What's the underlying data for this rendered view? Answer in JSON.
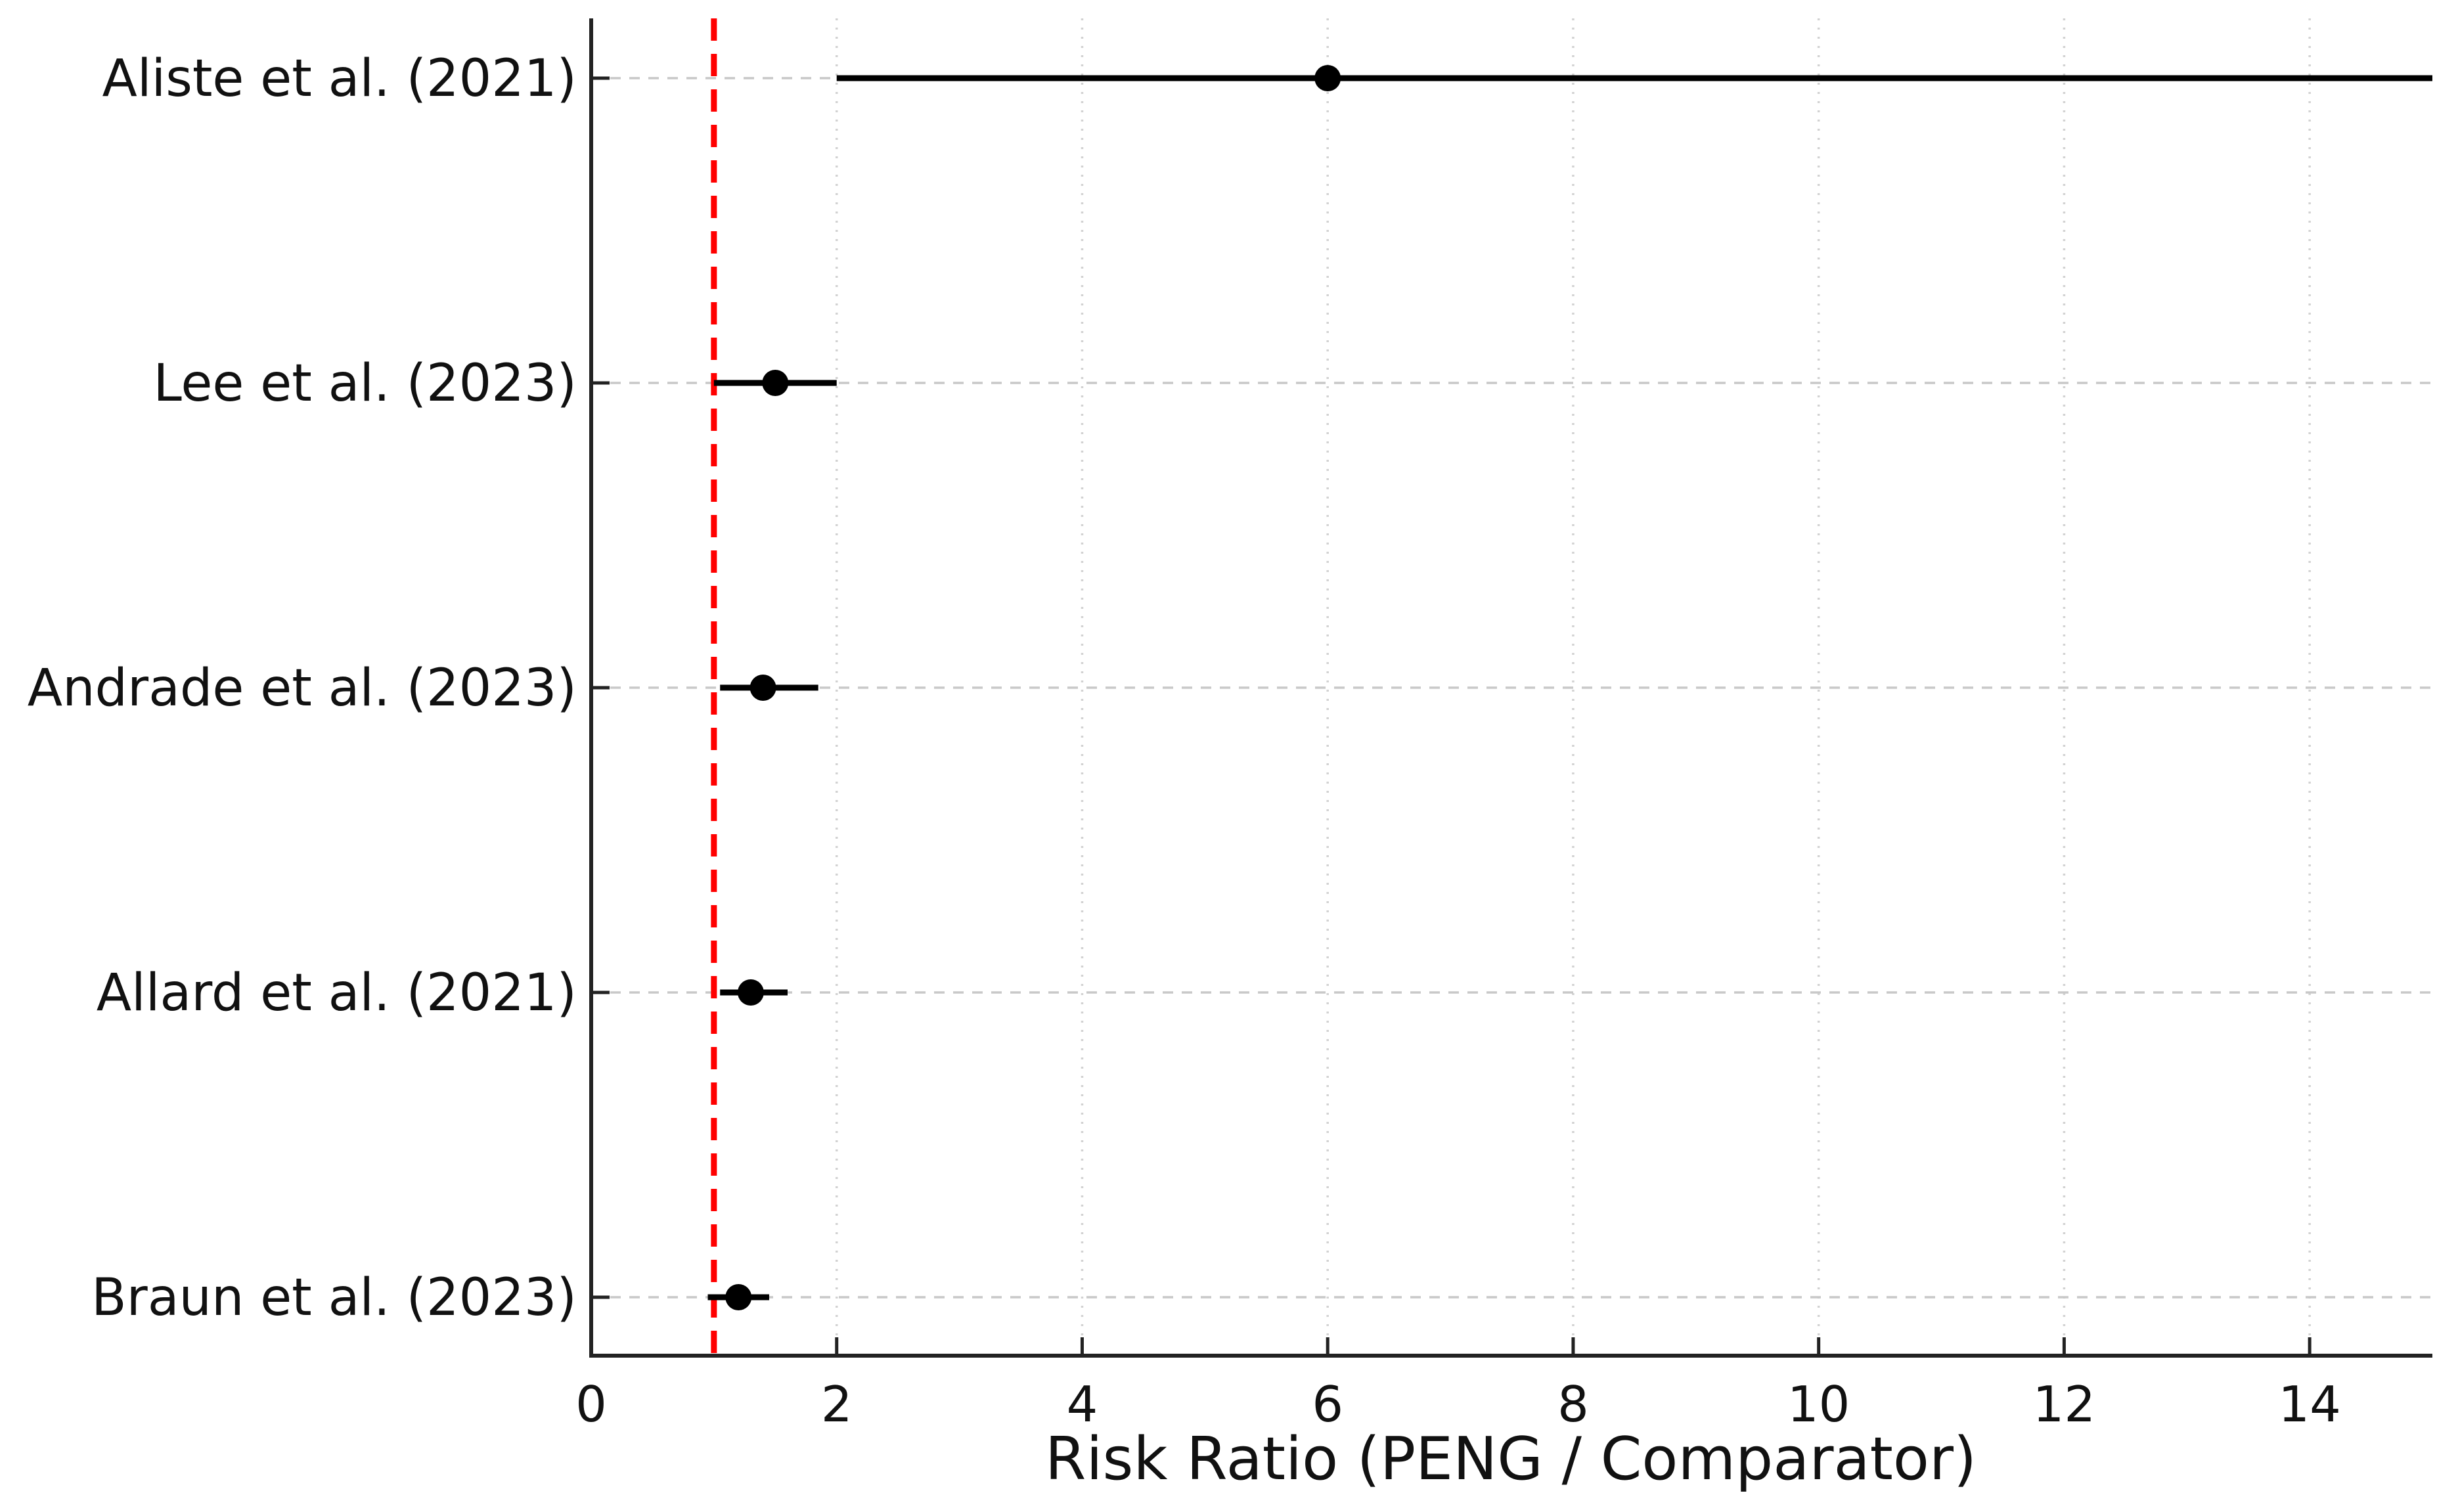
{
  "chart_data": {
    "type": "scatter",
    "subtype": "forest-plot",
    "title": "",
    "xlabel": "Risk Ratio (PENG / Comparator)",
    "ylabel": "",
    "xlim": [
      0,
      15
    ],
    "x_ticks": [
      0,
      2,
      4,
      6,
      8,
      10,
      12,
      14
    ],
    "grid": true,
    "reference_line_x": 1,
    "legend": "none",
    "studies": [
      {
        "label": "Aliste et al. (2021)",
        "rr": 6.0,
        "ci_low": 2.0,
        "ci_high": 15.0,
        "ci_high_clipped": true
      },
      {
        "label": "Lee et al. (2023)",
        "rr": 1.5,
        "ci_low": 1.0,
        "ci_high": 2.0,
        "ci_high_clipped": false
      },
      {
        "label": "Andrade et al. (2023)",
        "rr": 1.4,
        "ci_low": 1.05,
        "ci_high": 1.85,
        "ci_high_clipped": false
      },
      {
        "label": "Allard et al. (2021)",
        "rr": 1.3,
        "ci_low": 1.05,
        "ci_high": 1.6,
        "ci_high_clipped": false
      },
      {
        "label": "Braun et al. (2023)",
        "rr": 1.2,
        "ci_low": 0.95,
        "ci_high": 1.45,
        "ci_high_clipped": false
      }
    ],
    "colors": {
      "reference_line": "#ff0000",
      "point_and_ci": "#000000",
      "grid_horizontal": "#c8c8c8",
      "grid_vertical": "#d2d2d2",
      "axis": "#222222",
      "text": "#111111"
    }
  }
}
